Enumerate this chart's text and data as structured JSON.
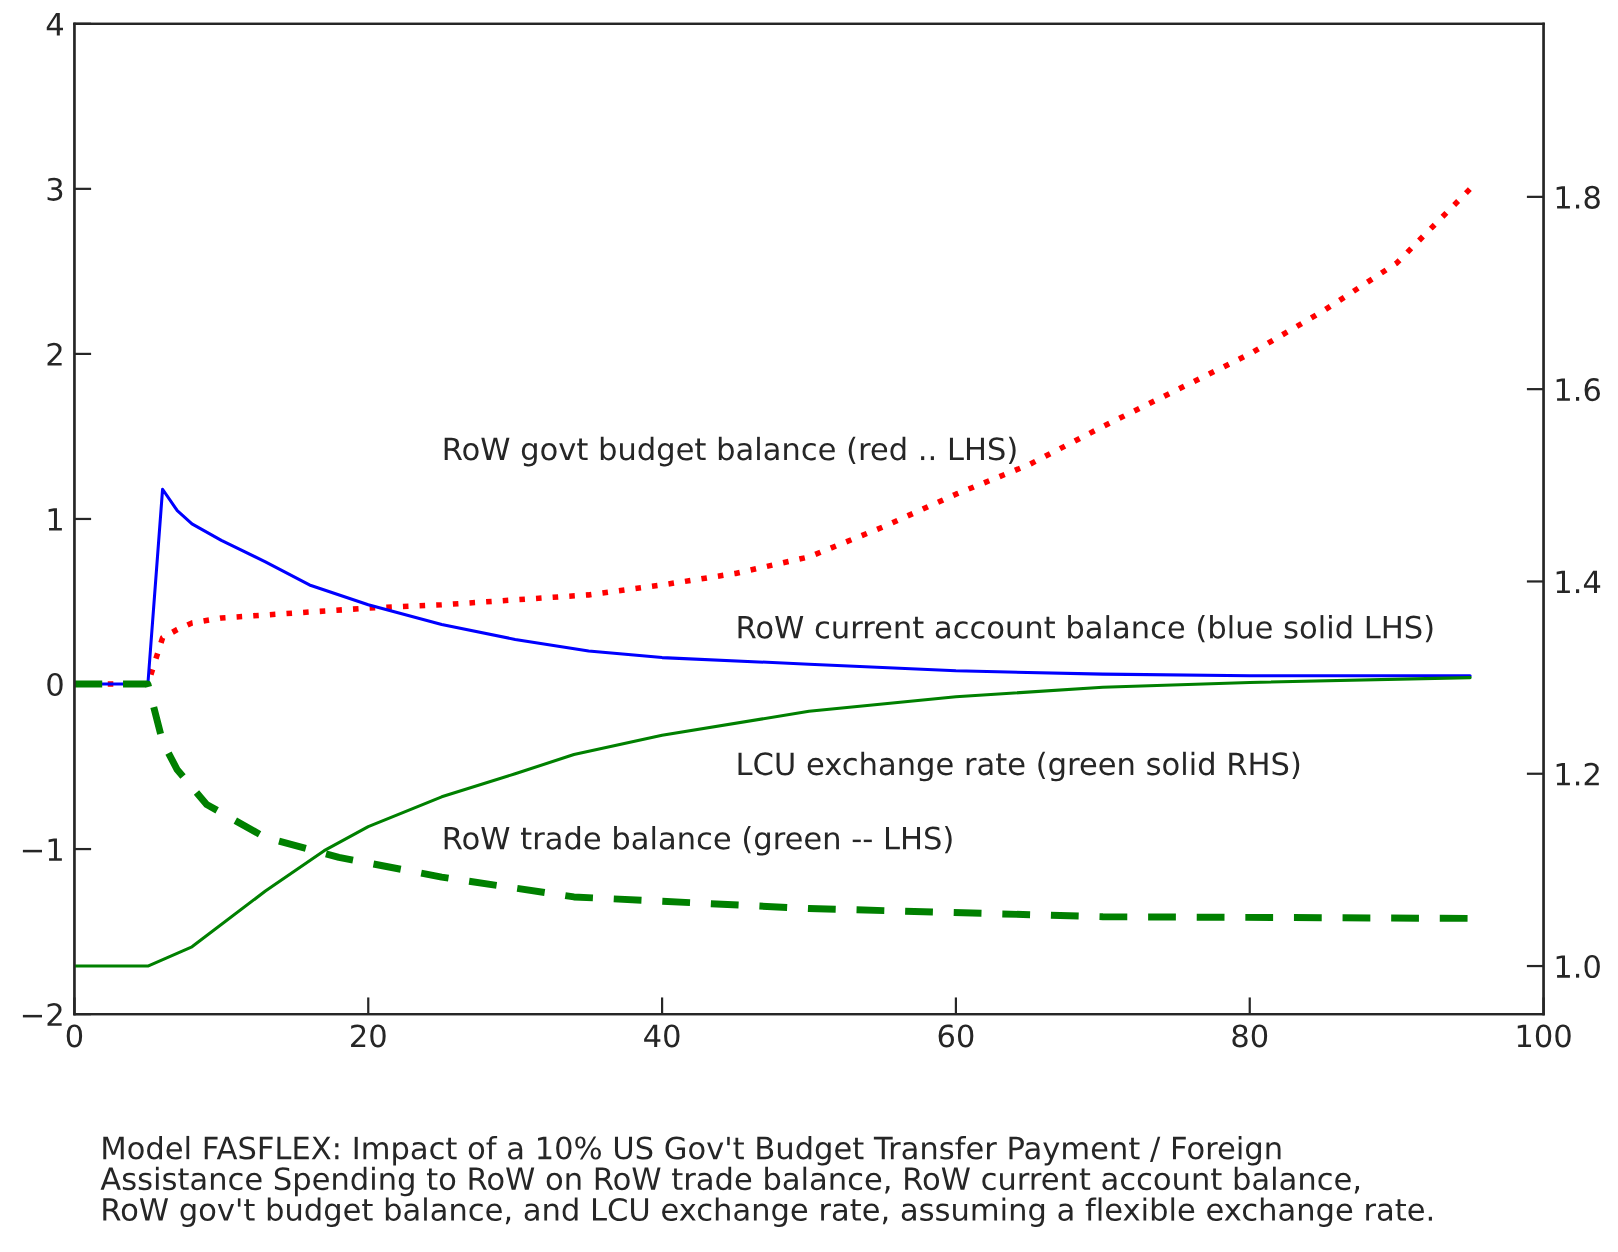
{
  "chart_data": {
    "type": "line",
    "xlim": [
      0,
      100
    ],
    "xticks": [
      0,
      20,
      40,
      60,
      80,
      100
    ],
    "ylim": [
      -2,
      4
    ],
    "yticks": [
      {
        "value": -2,
        "label": "−2"
      },
      {
        "value": -1,
        "label": "−1"
      },
      0,
      1,
      2,
      3,
      4
    ],
    "y2lim": [
      0.95,
      1.98
    ],
    "y2ticks": [
      {
        "value": 1.0,
        "label": "1.0"
      },
      {
        "value": 1.2,
        "label": "1.2"
      },
      {
        "value": 1.4,
        "label": "1.4"
      },
      {
        "value": 1.6,
        "label": "1.6"
      },
      {
        "value": 1.8,
        "label": "1.8"
      }
    ],
    "grid": false,
    "legend": false,
    "marker": "none",
    "series": [
      {
        "color": "#ff0000",
        "line_style": "dotted",
        "x": [
          0,
          5,
          6,
          7,
          8,
          10,
          15,
          20,
          25,
          30,
          35,
          40,
          45,
          50,
          55,
          60,
          65,
          70,
          75,
          80,
          85,
          90,
          95
        ],
        "values": [
          0,
          0,
          0.28,
          0.33,
          0.37,
          0.4,
          0.43,
          0.46,
          0.48,
          0.51,
          0.54,
          0.6,
          0.67,
          0.77,
          0.95,
          1.15,
          1.33,
          1.56,
          1.78,
          2.0,
          2.26,
          2.55,
          3.0
        ]
      },
      {
        "color": "#0000ff",
        "line_style": "solid",
        "x": [
          0,
          5,
          6,
          7,
          8,
          10,
          13,
          16,
          20,
          25,
          30,
          35,
          40,
          50,
          60,
          70,
          80,
          95
        ],
        "values": [
          0,
          0,
          1.18,
          1.05,
          0.97,
          0.87,
          0.74,
          0.6,
          0.48,
          0.36,
          0.27,
          0.2,
          0.16,
          0.12,
          0.08,
          0.06,
          0.05,
          0.05
        ]
      },
      {
        "color": "#008000",
        "line_style": "dashed",
        "x": [
          0,
          5,
          6,
          7,
          9,
          13,
          18,
          25,
          34,
          50,
          70,
          95
        ],
        "values": [
          0,
          0,
          -0.35,
          -0.52,
          -0.73,
          -0.93,
          -1.05,
          -1.17,
          -1.29,
          -1.36,
          -1.41,
          -1.42
        ]
      },
      {
        "color": "#008000",
        "line_style": "solid",
        "axis": "y2",
        "x": [
          0,
          5,
          8,
          13,
          17,
          20,
          25,
          30,
          34,
          40,
          50,
          60,
          70,
          80,
          95
        ],
        "values": [
          1.0,
          1.0,
          1.02,
          1.078,
          1.12,
          1.145,
          1.176,
          1.2,
          1.22,
          1.24,
          1.265,
          1.28,
          1.29,
          1.295,
          1.3
        ]
      }
    ],
    "annotations": [
      "RoW govt budget balance (red .. LHS)",
      "RoW current account balance (blue solid LHS)",
      "LCU exchange rate (green solid RHS)",
      "RoW trade balance (green -- LHS)",
      "Model FASFLEX: Impact of a 10% US Gov't Budget Transfer Payment / Foreign\nAssistance Spending to RoW on RoW trade balance, RoW current account balance,\nRoW gov't budget balance, and LCU exchange rate, assuming a flexible exchange rate."
    ]
  }
}
